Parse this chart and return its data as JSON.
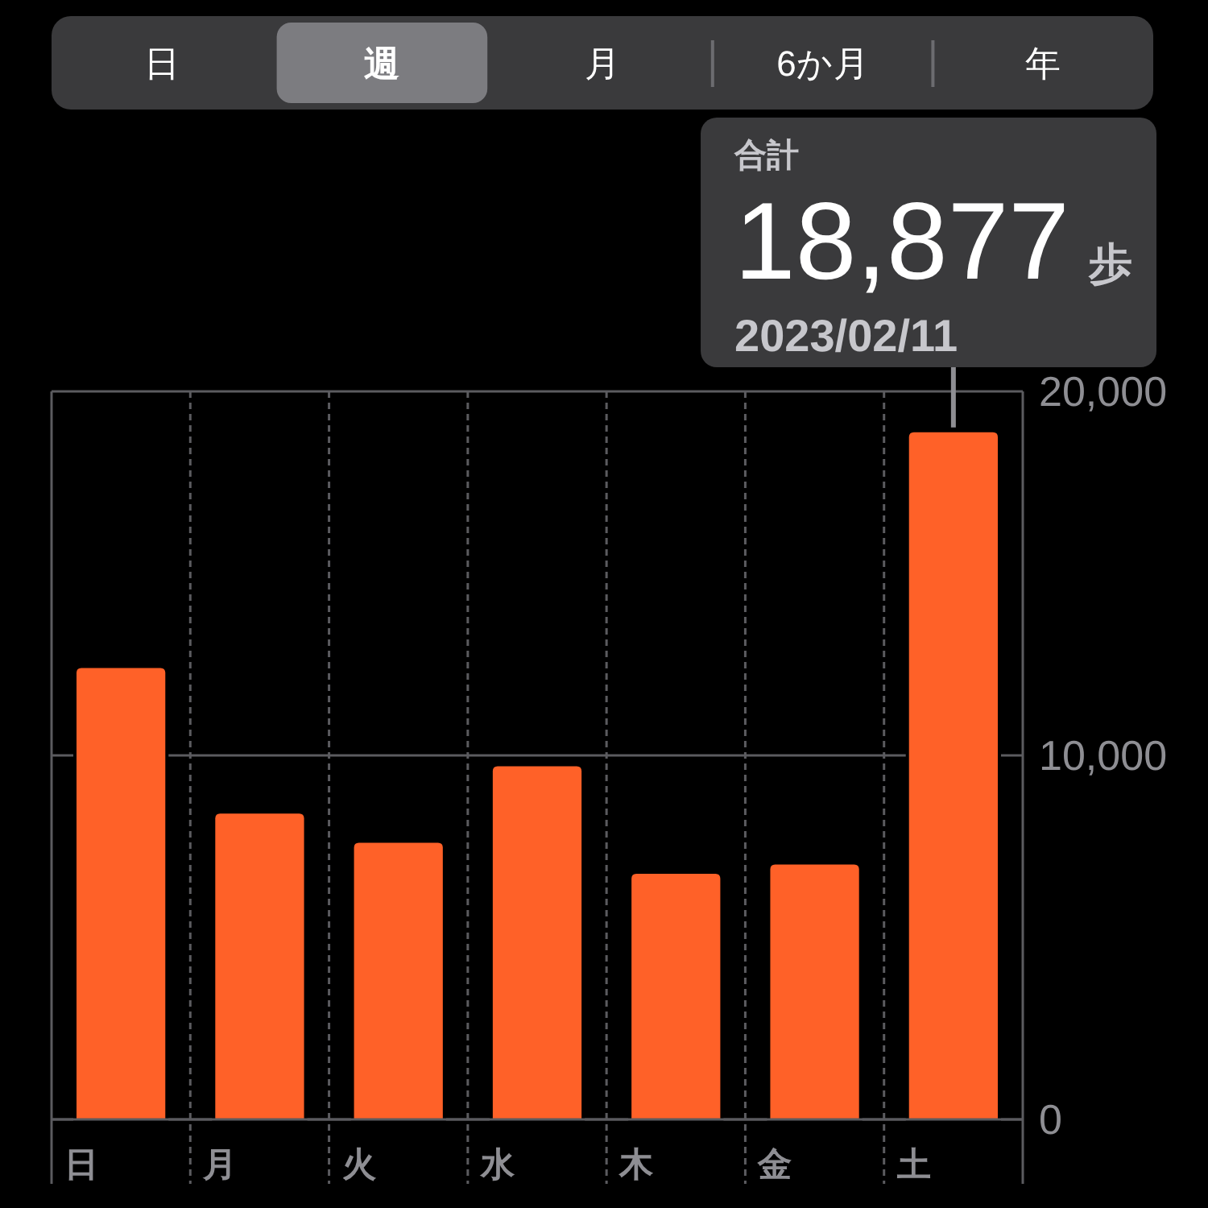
{
  "chart_data": [
    {
      "type": "other",
      "categories": [
        "日",
        "週",
        "月",
        "6か月",
        "年"
      ],
      "colors": [
        "#3a3a3c",
        "#7c7c80",
        "#3a3a3c",
        "#3a3a3c",
        "#3a3a3c"
      ]
    },
    {
      "type": "bar",
      "categories": [
        "日",
        "月",
        "火",
        "水",
        "木",
        "金",
        "土"
      ],
      "values": [
        12400,
        8400,
        7600,
        9700,
        6750,
        7000,
        18877
      ],
      "color": "#ff6128",
      "ylim": [
        0,
        20000
      ],
      "yticks": [
        0,
        {
          "value": 10000,
          "label": "10,000"
        },
        {
          "value": 20000,
          "label": "20,000"
        }
      ],
      "grid": true,
      "annotations": [
        "合計",
        {
          "text": "18,877 歩",
          "x": "土",
          "y": 18877
        },
        "2023/02/11"
      ]
    }
  ]
}
